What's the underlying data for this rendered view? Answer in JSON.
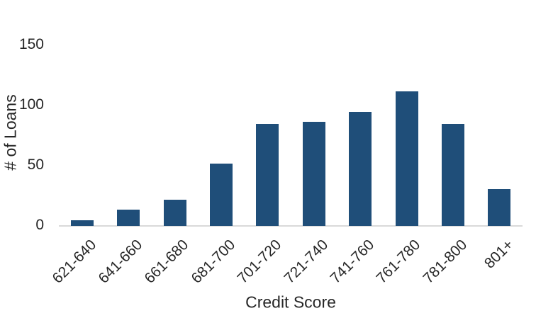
{
  "chart_data": {
    "type": "bar",
    "title": "",
    "categories": [
      "621-640",
      "641-660",
      "661-680",
      "681-700",
      "701-720",
      "721-740",
      "741-760",
      "761-780",
      "781-800",
      "801+"
    ],
    "values": [
      4,
      13,
      21,
      51,
      84,
      86,
      94,
      111,
      84,
      30
    ],
    "xlabel": "Credit Score",
    "ylabel": "# of Loans",
    "ylim": [
      0,
      150
    ],
    "yticks": [
      0,
      50,
      100,
      150
    ],
    "bar_color": "#1F4E79",
    "axis_line_color": "#D9D9D9",
    "text_color": "#262626",
    "grid": "off",
    "legend": "none"
  }
}
